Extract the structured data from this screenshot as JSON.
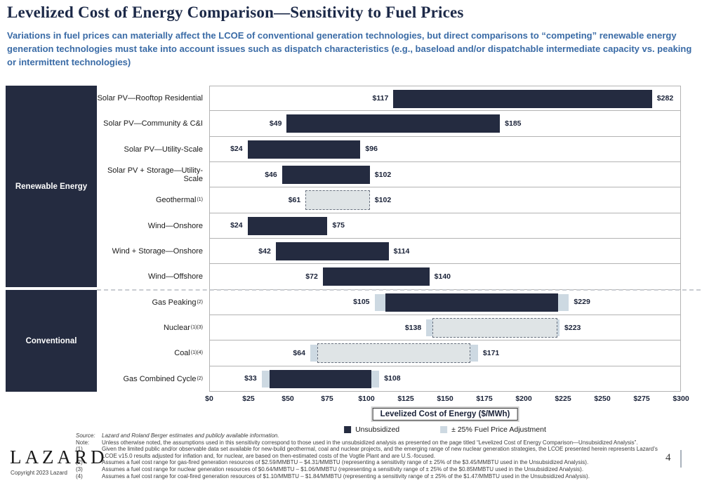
{
  "header": {
    "title": "Levelized Cost of Energy Comparison—Sensitivity to Fuel Prices",
    "subtitle": "Variations in fuel prices can materially affect the LCOE of conventional generation technologies, but direct comparisons to “competing” renewable energy generation technologies must take into account issues such as dispatch characteristics (e.g., baseload and/or dispatchable intermediate capacity vs. peaking or intermittent technologies)"
  },
  "sidebar": {
    "renewable_label": "Renewable Energy",
    "conventional_label": "Conventional"
  },
  "chart_data": {
    "type": "bar",
    "orientation": "horizontal",
    "xaxis_title": "Levelized Cost of Energy ($/MWh)",
    "xlim": [
      0,
      300
    ],
    "x_ticks": [
      "$0",
      "$25",
      "$50",
      "$75",
      "$100",
      "$125",
      "$150",
      "$175",
      "$200",
      "$225",
      "$250",
      "$275",
      "$300"
    ],
    "rows": [
      {
        "label": "Solar PV—Rooftop Residential",
        "sup": "",
        "group": "renewable",
        "low": 117,
        "high": 282,
        "low_label": "$117",
        "high_label": "$282",
        "segments": [
          {
            "from": 117,
            "to": 282,
            "type": "solid"
          }
        ]
      },
      {
        "label": "Solar PV—Community & C&I",
        "sup": "",
        "group": "renewable",
        "low": 49,
        "high": 185,
        "low_label": "$49",
        "high_label": "$185",
        "segments": [
          {
            "from": 49,
            "to": 185,
            "type": "solid"
          }
        ]
      },
      {
        "label": "Solar PV—Utility-Scale",
        "sup": "",
        "group": "renewable",
        "low": 24,
        "high": 96,
        "low_label": "$24",
        "high_label": "$96",
        "segments": [
          {
            "from": 24,
            "to": 96,
            "type": "solid"
          }
        ]
      },
      {
        "label": "Solar PV + Storage—Utility-Scale",
        "sup": "",
        "group": "renewable",
        "low": 46,
        "high": 102,
        "low_label": "$46",
        "high_label": "$102",
        "segments": [
          {
            "from": 46,
            "to": 102,
            "type": "solid"
          }
        ]
      },
      {
        "label": "Geothermal",
        "sup": "(1)",
        "group": "renewable",
        "low": 61,
        "high": 102,
        "low_label": "$61",
        "high_label": "$102",
        "segments": [
          {
            "from": 61,
            "to": 102,
            "type": "dashed"
          }
        ]
      },
      {
        "label": "Wind—Onshore",
        "sup": "",
        "group": "renewable",
        "low": 24,
        "high": 75,
        "low_label": "$24",
        "high_label": "$75",
        "segments": [
          {
            "from": 24,
            "to": 75,
            "type": "solid"
          }
        ]
      },
      {
        "label": "Wind + Storage—Onshore",
        "sup": "",
        "group": "renewable",
        "low": 42,
        "high": 114,
        "low_label": "$42",
        "high_label": "$114",
        "segments": [
          {
            "from": 42,
            "to": 114,
            "type": "solid"
          }
        ]
      },
      {
        "label": "Wind—Offshore",
        "sup": "",
        "group": "renewable",
        "low": 72,
        "high": 140,
        "low_label": "$72",
        "high_label": "$140",
        "segments": [
          {
            "from": 72,
            "to": 140,
            "type": "solid"
          }
        ]
      },
      {
        "label": "Gas Peaking",
        "sup": "(2)",
        "group": "conventional",
        "low": 105,
        "high": 229,
        "low_label": "$105",
        "high_label": "$229",
        "segments": [
          {
            "from": 105,
            "to": 112,
            "type": "fuel"
          },
          {
            "from": 112,
            "to": 222,
            "type": "solid"
          },
          {
            "from": 222,
            "to": 229,
            "type": "fuel"
          }
        ]
      },
      {
        "label": "Nuclear",
        "sup": "(1)(3)",
        "group": "conventional",
        "low": 138,
        "high": 223,
        "low_label": "$138",
        "high_label": "$223",
        "segments": [
          {
            "from": 138,
            "to": 142,
            "type": "fuel"
          },
          {
            "from": 142,
            "to": 221.5,
            "type": "dashed"
          },
          {
            "from": 221.5,
            "to": 223,
            "type": "fuel"
          }
        ]
      },
      {
        "label": "Coal",
        "sup": "(1)(4)",
        "group": "conventional",
        "low": 64,
        "high": 171,
        "low_label": "$64",
        "high_label": "$171",
        "segments": [
          {
            "from": 64,
            "to": 68.5,
            "type": "fuel"
          },
          {
            "from": 68.5,
            "to": 166,
            "type": "dashed"
          },
          {
            "from": 166,
            "to": 171,
            "type": "fuel"
          }
        ]
      },
      {
        "label": "Gas Combined Cycle",
        "sup": "(2)",
        "group": "conventional",
        "low": 33,
        "high": 108,
        "low_label": "$33",
        "high_label": "$108",
        "segments": [
          {
            "from": 33,
            "to": 38,
            "type": "fuel"
          },
          {
            "from": 38,
            "to": 103,
            "type": "solid"
          },
          {
            "from": 103,
            "to": 108,
            "type": "fuel"
          }
        ]
      }
    ],
    "legend": [
      {
        "label": "Unsubsidized",
        "type": "solid"
      },
      {
        "label": "± 25% Fuel Price Adjustment",
        "type": "fuel"
      }
    ]
  },
  "footnotes": [
    {
      "label": "Source:",
      "italic": true,
      "text": "Lazard and Roland Berger estimates and publicly available information."
    },
    {
      "label": "Note:",
      "italic": false,
      "text": "Unless otherwise noted, the assumptions used in this sensitivity correspond to those used in the unsubsidized analysis as presented on the page titled “Levelized Cost of Energy Comparison—Unsubsidized Analysis”."
    },
    {
      "label": "(1)",
      "italic": false,
      "text": "Given the limited public and/or observable data set available for new-build geothermal, coal and nuclear projects, and the emerging range of new nuclear generation strategies, the LCOE presented herein represents Lazard’s LCOE v15.0 results adjusted for inflation and, for nuclear, are based on then-estimated costs of the Vogtle Plant and are U.S.-focused."
    },
    {
      "label": "(2)",
      "italic": false,
      "text": "Assumes a fuel cost range for gas-fired generation resources of $2.59/MMBTU – $4.31/MMBTU (representing a sensitivity range of ± 25% of the $3.45/MMBTU used in the Unsubsidized Analysis)."
    },
    {
      "label": "(3)",
      "italic": false,
      "text": "Assumes a fuel cost range for nuclear generation resources of $0.64/MMBTU – $1.06/MMBTU (representing a sensitivity range of ± 25% of the $0.85MMBTU used in the Unsubsidized Analysis)."
    },
    {
      "label": "(4)",
      "italic": false,
      "text": "Assumes a fuel cost range for coal-fired generation resources of $1.10/MMBTU – $1.84/MMBTU (representing a sensitivity range of ± 25% of the $1.47/MMBTU used in the Unsubsidized Analysis)."
    }
  ],
  "footer": {
    "logo": "LAZARD",
    "copyright": "Copyright 2023 Lazard",
    "page_number": "4"
  },
  "colors": {
    "bar_navy": "#242b40",
    "fuel_blue": "#cdd9e2",
    "dashed_fill": "#dfe4e6",
    "subtitle_blue": "#3a6ba6",
    "title_navy": "#1c2948"
  }
}
